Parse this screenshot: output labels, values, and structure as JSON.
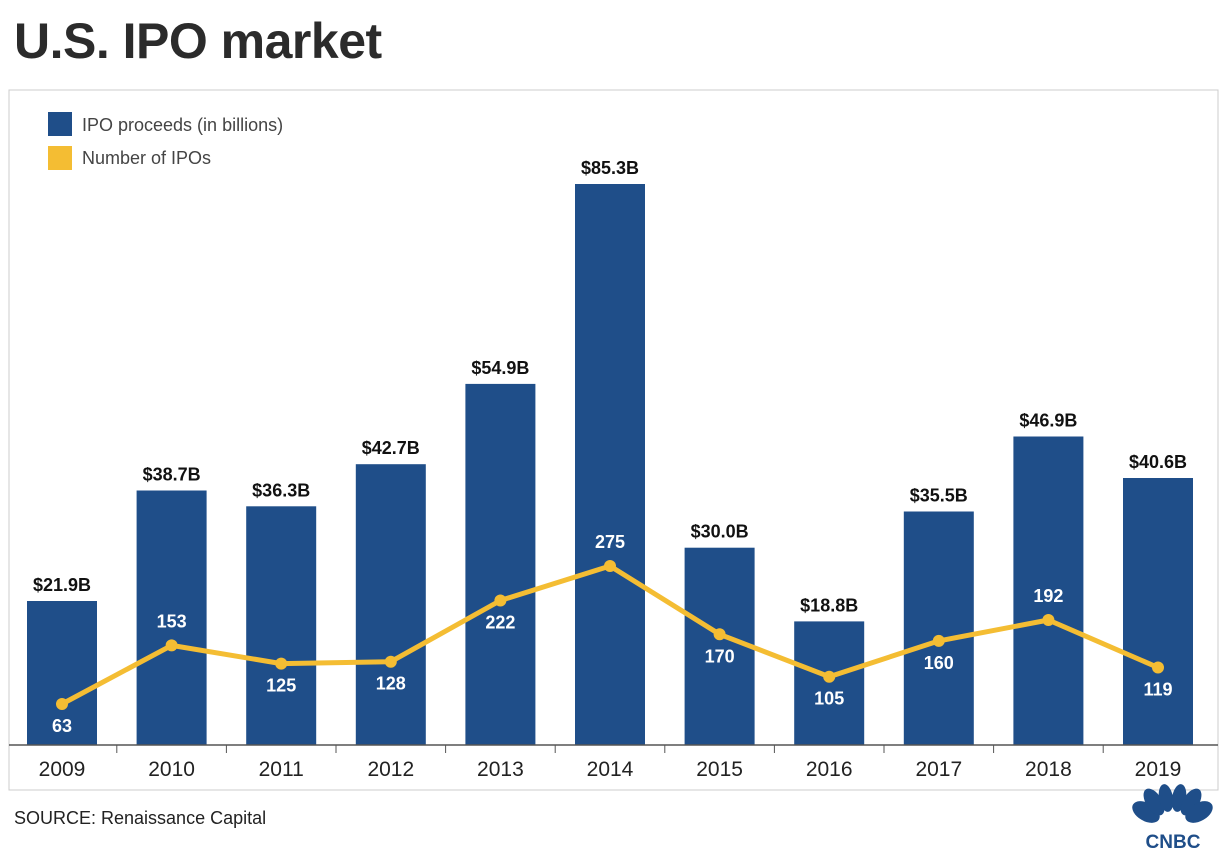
{
  "page": {
    "title": "U.S. IPO market",
    "source": "SOURCE: Renaissance Capital",
    "logo_text": "CNBC"
  },
  "colors": {
    "bar": "#1f4e89",
    "line": "#f4bd33",
    "frame": "#cccccc",
    "axis": "#555555"
  },
  "chart_data": {
    "type": "bar",
    "categories": [
      "2009",
      "2010",
      "2011",
      "2012",
      "2013",
      "2014",
      "2015",
      "2016",
      "2017",
      "2018",
      "2019"
    ],
    "series": [
      {
        "name": "IPO proceeds (in billions)",
        "type": "bar",
        "values": [
          21.9,
          38.7,
          36.3,
          42.7,
          54.9,
          85.3,
          30.0,
          18.8,
          35.5,
          46.9,
          40.6
        ],
        "labels": [
          "$21.9B",
          "$38.7B",
          "$36.3B",
          "$42.7B",
          "$54.9B",
          "$85.3B",
          "$30.0B",
          "$18.8B",
          "$35.5B",
          "$46.9B",
          "$40.6B"
        ]
      },
      {
        "name": "Number of IPOs",
        "type": "line",
        "values": [
          63,
          153,
          125,
          128,
          222,
          275,
          170,
          105,
          160,
          192,
          119
        ],
        "labels": [
          "63",
          "153",
          "125",
          "128",
          "222",
          "275",
          "170",
          "105",
          "160",
          "192",
          "119"
        ]
      }
    ],
    "bar_ylim": [
      0,
      85.3
    ],
    "line_ylim": [
      0,
      275
    ],
    "legend_position": "top-left",
    "grid": false
  }
}
